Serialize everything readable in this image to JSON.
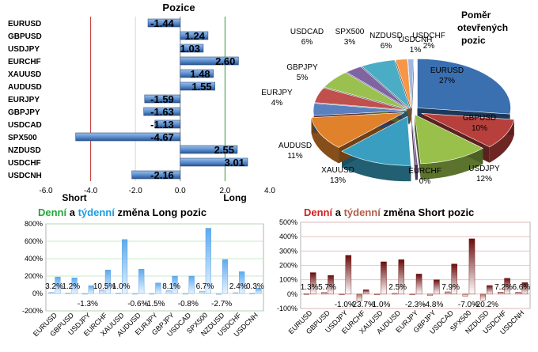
{
  "positions_chart": {
    "title": "Pozice",
    "axis_labels": {
      "short": "Short",
      "long": "Long"
    }
  },
  "pie_chart": {
    "title_lines": [
      "Poměr",
      "otevřených",
      "pozic"
    ]
  },
  "long_chart": {
    "title_parts": [
      {
        "text": "Denní",
        "color": "#22a63c"
      },
      {
        "text": " a ",
        "color": "#000000"
      },
      {
        "text": "týdenní",
        "color": "#1e9be0"
      },
      {
        "text": " změna Long pozic",
        "color": "#000000"
      }
    ]
  },
  "short_chart": {
    "title_parts": [
      {
        "text": "Denní",
        "color": "#d42020"
      },
      {
        "text": " a ",
        "color": "#000000"
      },
      {
        "text": "týdenní",
        "color": "#b0604a"
      },
      {
        "text": " změna Short pozic",
        "color": "#000000"
      }
    ]
  },
  "colors": {
    "hbar": "#3d6fb0",
    "short_line": "#c0302e",
    "long_line": "#2e9a3a",
    "long_bar": "#4a9ee8",
    "short_bar": "#7a1212"
  },
  "chart_data": [
    {
      "type": "bar",
      "orientation": "horizontal",
      "title": "Pozice",
      "categories": [
        "EURUSD",
        "GBPUSD",
        "USDJPY",
        "EURCHF",
        "XAUUSD",
        "AUDUSD",
        "EURJPY",
        "GBPJPY",
        "USDCAD",
        "SPX500",
        "NZDUSD",
        "USDCHF",
        "USDCNH"
      ],
      "values": [
        -1.44,
        1.24,
        1.03,
        2.6,
        1.48,
        1.55,
        -1.59,
        -1.63,
        -1.13,
        -4.67,
        2.55,
        3.01,
        -2.16
      ],
      "value_labels": [
        "-1.44",
        "1.24",
        "1.03",
        "2.60",
        "1.48",
        "1.55",
        "-1.59",
        "-1.63",
        "-1.13",
        "-4.67",
        "2.55",
        "3.01",
        "-2.16"
      ],
      "xlim": [
        -6.0,
        4.0
      ],
      "x_ticks": [
        "-6.0",
        "-4.0",
        "-2.0",
        "0.0",
        "2.0",
        "4.0"
      ],
      "reference_lines": [
        -4.0,
        2.0
      ]
    },
    {
      "type": "pie",
      "title": "Poměr otevřených pozic",
      "labels": [
        "EURUSD",
        "GBPUSD",
        "USDJPY",
        "EURCHF",
        "XAUUSD",
        "AUDUSD",
        "EURJPY",
        "GBPJPY",
        "USDCAD",
        "SPX500",
        "NZDUSD",
        "USDCHF",
        "USDCNH"
      ],
      "values": [
        27,
        10,
        12,
        0,
        13,
        11,
        4,
        5,
        6,
        3,
        6,
        2,
        1
      ],
      "value_labels": [
        "27%",
        "10%",
        "12%",
        "0%",
        "13%",
        "11%",
        "4%",
        "5%",
        "6%",
        "3%",
        "6%",
        "2%",
        "1%"
      ],
      "colors": [
        "#3a6fb0",
        "#b8403c",
        "#98c04a",
        "#7a5aa0",
        "#3a9ec0",
        "#e0822c",
        "#5a80c0",
        "#c0504d",
        "#9ac050",
        "#8064a2",
        "#4bacc6",
        "#f79646",
        "#a0b8e0"
      ]
    },
    {
      "type": "bar",
      "title": "Denní a týdenní změna Long pozic",
      "categories": [
        "EURUSD",
        "GBPUSD",
        "USDJPY",
        "EURCHF",
        "XAUUSD",
        "AUDUSD",
        "EURJPY",
        "GBPJPY",
        "USDCAD",
        "SPX500",
        "NZDUSD",
        "USDCHF",
        "USDCNH"
      ],
      "series": [
        {
          "values": [
            3.2,
            1.2,
            -1.3,
            10.5,
            1.0,
            -0.6,
            -1.5,
            8.1,
            -0.8,
            6.7,
            -2.7,
            2.4,
            0.3
          ]
        },
        {
          "values": [
            190,
            180,
            90,
            270,
            620,
            280,
            120,
            200,
            200,
            750,
            390,
            250,
            60
          ]
        }
      ],
      "data_labels": [
        "3.2%",
        "1.2%",
        "-1.3%",
        "10.5%",
        "1.0%",
        "-0.6%",
        "-1.5%",
        "8.1%",
        "-0.8%",
        "6.7%",
        "-2.7%",
        "2.4%",
        "0.3%"
      ],
      "ylim": [
        -200,
        800
      ],
      "y_ticks": [
        "800%",
        "600%",
        "400%",
        "200%",
        "0%",
        "-200%"
      ]
    },
    {
      "type": "bar",
      "title": "Denní a týdenní změna Short pozic",
      "categories": [
        "EURUSD",
        "GBPUSD",
        "USDJPY",
        "EURCHF",
        "XAUUSD",
        "AUDUSD",
        "EURJPY",
        "GBPJPY",
        "USDCAD",
        "SPX500",
        "NZDUSD",
        "USDCHF",
        "USDCNH"
      ],
      "series": [
        {
          "values": [
            1.3,
            5.7,
            -1.0,
            -23.7,
            -1.0,
            2.5,
            -2.3,
            -4.8,
            7.9,
            -7.0,
            -20.2,
            7.2,
            6.6
          ]
        },
        {
          "values": [
            150,
            130,
            270,
            30,
            225,
            240,
            140,
            100,
            210,
            385,
            60,
            110,
            80
          ]
        }
      ],
      "data_labels": [
        "1.3%",
        "5.7%",
        "-1.0%",
        "-23.7%",
        "-1.0%",
        "2.5%",
        "-2.3%",
        "-4.8%",
        "7.9%",
        "-7.0%",
        "-20.2%",
        "7.2%",
        "6.6%"
      ],
      "ylim": [
        -100,
        500
      ],
      "y_ticks": [
        "500%",
        "400%",
        "300%",
        "200%",
        "100%",
        "0%",
        "-100%"
      ]
    }
  ]
}
